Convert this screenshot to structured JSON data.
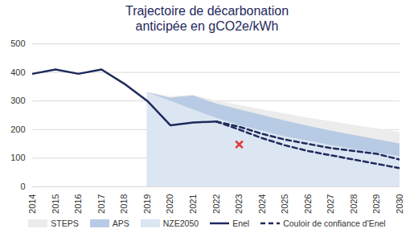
{
  "chart_data": {
    "type": "line",
    "title": "Trajectoire de décarbonation anticipée en gCO2e/kWh",
    "x": [
      2014,
      2015,
      2016,
      2017,
      2018,
      2019,
      2020,
      2021,
      2022,
      2023,
      2024,
      2025,
      2026,
      2027,
      2028,
      2029,
      2030
    ],
    "xlim": [
      2014,
      2030
    ],
    "xticks": [
      2014,
      2015,
      2016,
      2017,
      2018,
      2019,
      2020,
      2021,
      2022,
      2023,
      2024,
      2025,
      2026,
      2027,
      2028,
      2029,
      2030
    ],
    "ylim": [
      0,
      500
    ],
    "yticks": [
      0,
      100,
      200,
      300,
      400,
      500
    ],
    "grid": true,
    "legend": "bottom",
    "series": [
      {
        "name": "STEPS",
        "type": "area",
        "color": "#ececec",
        "values": [
          null,
          null,
          null,
          null,
          null,
          330,
          315,
          320,
          300,
          285,
          270,
          255,
          240,
          228,
          215,
          203,
          190
        ]
      },
      {
        "name": "APS",
        "type": "area",
        "color": "#b8cbe4",
        "values": [
          null,
          null,
          null,
          null,
          null,
          330,
          310,
          318,
          290,
          270,
          250,
          230,
          212,
          195,
          180,
          165,
          150
        ]
      },
      {
        "name": "NZE2050",
        "type": "area",
        "color": "#dce6f3",
        "values": [
          null,
          null,
          null,
          null,
          null,
          330,
          300,
          270,
          240,
          215,
          195,
          175,
          160,
          145,
          130,
          118,
          105
        ]
      },
      {
        "name": "Enel",
        "type": "line",
        "color": "#1f2a5c",
        "line_style": "solid",
        "values": [
          395,
          410,
          395,
          410,
          360,
          300,
          215,
          225,
          228,
          null,
          null,
          null,
          null,
          null,
          null,
          null,
          null
        ]
      },
      {
        "name": "Couloir de confiance d'Enel",
        "type": "line",
        "color": "#1f2a5c",
        "line_style": "dashed",
        "values": [
          null,
          null,
          null,
          null,
          null,
          null,
          null,
          null,
          228,
          210,
          185,
          165,
          150,
          135,
          125,
          115,
          95
        ],
        "lower": [
          null,
          null,
          null,
          null,
          null,
          null,
          null,
          null,
          228,
          200,
          170,
          145,
          125,
          110,
          95,
          80,
          65
        ]
      }
    ],
    "annotations": [
      {
        "x": 2023,
        "y": 148,
        "color": "#e03c31",
        "marker": "x"
      }
    ]
  }
}
